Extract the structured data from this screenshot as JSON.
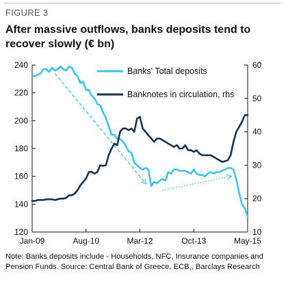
{
  "figure_label": "FIGURE 3",
  "title": "After massive outflows, banks deposits tend to recover slowly (€ bn)",
  "note": "Note: Banks deposits include - Households, NFC, Insurance companies and Pension Funds. Source: Central Bank of Greece, ECB,, Barclays Research",
  "colors": {
    "deposits": "#3cc3ee",
    "banknotes": "#16324f",
    "axis": "#111111"
  },
  "chart_data": {
    "type": "line",
    "x_tick_labels": [
      "Jan-09",
      "Aug-10",
      "Mar-12",
      "Oct-13",
      "May-15"
    ],
    "x_tick_index": [
      0,
      19,
      38,
      57,
      76
    ],
    "xlim": [
      0,
      76
    ],
    "y_left": {
      "ticks": [
        120,
        140,
        160,
        180,
        200,
        220,
        240
      ],
      "lim": [
        120,
        240
      ]
    },
    "y_right": {
      "ticks": [
        10,
        20,
        30,
        40,
        50,
        60
      ],
      "lim": [
        10,
        60
      ]
    },
    "legend": [
      {
        "label": "Banks' Total deposits",
        "series": "deposits"
      },
      {
        "label": "Banknotes in circulation, rhs",
        "series": "banknotes"
      }
    ],
    "series": [
      {
        "name": "Banks' Total deposits",
        "key": "deposits",
        "axis": "left",
        "values": [
          232,
          232,
          233,
          234,
          237,
          237,
          235,
          238,
          236,
          237,
          239,
          237,
          236,
          239,
          238,
          234,
          232,
          227,
          228,
          222,
          222,
          218,
          216,
          212,
          211,
          206,
          202,
          196,
          190,
          190,
          187,
          187,
          185,
          182,
          178,
          177,
          170,
          168,
          166,
          165,
          166,
          165,
          153,
          156,
          155,
          157,
          158,
          157,
          163,
          162,
          165,
          165,
          164,
          164,
          164,
          163,
          162,
          165,
          162,
          161,
          161,
          160,
          162,
          163,
          162,
          163,
          163,
          164,
          165,
          166,
          166,
          165,
          158,
          148,
          140,
          137,
          131
        ]
      },
      {
        "name": "Banknotes in circulation, rhs",
        "key": "banknotes",
        "axis": "right",
        "values": [
          19.3,
          19.3,
          19.6,
          19.6,
          19.6,
          19.8,
          19.8,
          19.8,
          19.6,
          19.8,
          20,
          20,
          20.2,
          21,
          21,
          21.5,
          22.5,
          24,
          25,
          26,
          28,
          28,
          27.5,
          28,
          30,
          29.8,
          30,
          33,
          35,
          36.5,
          36,
          40,
          41,
          41,
          40.5,
          41,
          40,
          44,
          44.5,
          41,
          40,
          39,
          38,
          37,
          38,
          38,
          37.5,
          37,
          36.5,
          36,
          35.5,
          36,
          35,
          35,
          36,
          34.5,
          34.5,
          34,
          34.5,
          33.5,
          33,
          33,
          33,
          33,
          32.5,
          32,
          31.5,
          31,
          31.2,
          31.5,
          33,
          37,
          40,
          41.5,
          43,
          45,
          45
        ]
      }
    ],
    "annotations": [
      {
        "type": "arrow",
        "style": "dashed",
        "from": {
          "x": 8,
          "y": 234
        },
        "to": {
          "x": 40,
          "y": 155
        }
      },
      {
        "type": "arrow",
        "style": "dotted",
        "from": {
          "x": 46,
          "y": 150
        },
        "to": {
          "x": 70,
          "y": 160
        }
      }
    ]
  }
}
